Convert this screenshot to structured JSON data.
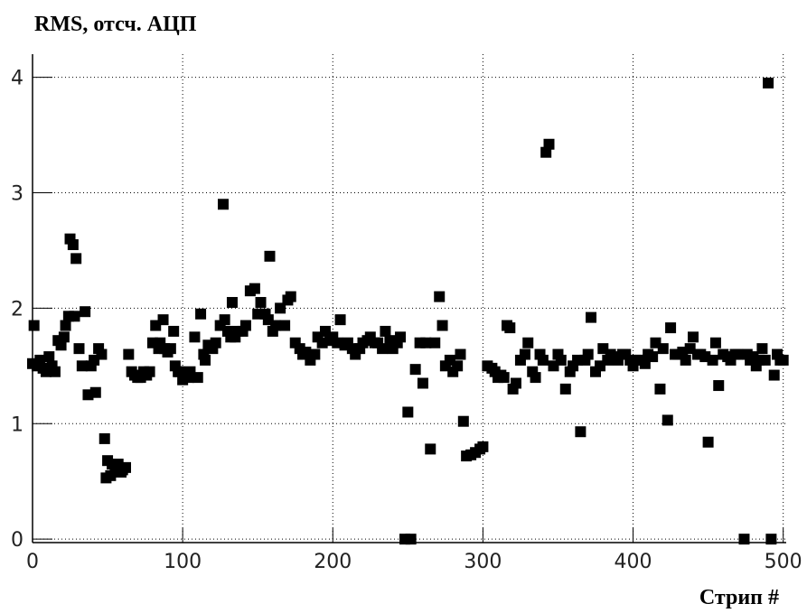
{
  "chart_data": {
    "type": "scatter",
    "title": "RMS, отсч. АЦП",
    "xlabel": "Стрип #",
    "color": "#000000",
    "grid": true,
    "xlim": [
      0,
      502
    ],
    "ylim": [
      -0.03,
      4.2
    ],
    "xticks": [
      0,
      100,
      200,
      300,
      400,
      500
    ],
    "yticks": [
      0,
      1,
      2,
      3,
      4
    ],
    "x": [
      0,
      1,
      3,
      5,
      7,
      9,
      11,
      13,
      15,
      17,
      19,
      21,
      22,
      24,
      25,
      27,
      28,
      29,
      31,
      33,
      35,
      37,
      39,
      41,
      42,
      44,
      46,
      48,
      49,
      50,
      52,
      53,
      55,
      57,
      59,
      60,
      62,
      64,
      66,
      68,
      70,
      72,
      74,
      76,
      78,
      80,
      82,
      84,
      85,
      87,
      88,
      90,
      92,
      94,
      95,
      97,
      98,
      100,
      102,
      104,
      105,
      108,
      110,
      112,
      114,
      115,
      117,
      120,
      122,
      125,
      127,
      128,
      130,
      132,
      133,
      135,
      137,
      140,
      142,
      145,
      148,
      150,
      152,
      155,
      157,
      158,
      160,
      162,
      165,
      168,
      170,
      172,
      175,
      178,
      180,
      182,
      185,
      188,
      190,
      193,
      195,
      198,
      200,
      203,
      205,
      208,
      210,
      213,
      215,
      218,
      220,
      223,
      225,
      228,
      230,
      233,
      235,
      238,
      240,
      243,
      245,
      248,
      250,
      252,
      255,
      258,
      260,
      262,
      265,
      268,
      271,
      273,
      275,
      278,
      280,
      283,
      285,
      287,
      289,
      292,
      295,
      298,
      300,
      303,
      306,
      308,
      310,
      312,
      314,
      316,
      318,
      320,
      322,
      325,
      328,
      330,
      333,
      335,
      338,
      340,
      342,
      344,
      347,
      350,
      352,
      355,
      358,
      360,
      363,
      365,
      368,
      370,
      372,
      375,
      378,
      380,
      383,
      385,
      388,
      390,
      393,
      395,
      398,
      400,
      403,
      405,
      408,
      410,
      413,
      415,
      418,
      420,
      423,
      425,
      428,
      430,
      433,
      435,
      438,
      440,
      443,
      445,
      448,
      450,
      453,
      455,
      457,
      460,
      463,
      465,
      468,
      470,
      474,
      476,
      478,
      480,
      482,
      484,
      486,
      488,
      490,
      492,
      494,
      496,
      498,
      500
    ],
    "values": [
      1.52,
      1.85,
      1.5,
      1.55,
      1.48,
      1.45,
      1.58,
      1.5,
      1.45,
      1.72,
      1.68,
      1.75,
      1.85,
      1.93,
      2.6,
      2.55,
      1.93,
      2.43,
      1.65,
      1.5,
      1.97,
      1.25,
      1.5,
      1.55,
      1.27,
      1.65,
      1.6,
      0.87,
      0.53,
      0.68,
      0.55,
      0.65,
      0.6,
      0.65,
      0.58,
      0.6,
      0.62,
      1.6,
      1.45,
      1.42,
      1.4,
      1.4,
      1.45,
      1.42,
      1.45,
      1.7,
      1.85,
      1.65,
      1.7,
      1.9,
      1.65,
      1.62,
      1.65,
      1.8,
      1.5,
      1.45,
      1.45,
      1.38,
      1.42,
      1.4,
      1.45,
      1.75,
      1.4,
      1.95,
      1.6,
      1.55,
      1.68,
      1.65,
      1.7,
      1.85,
      2.9,
      1.9,
      1.8,
      1.75,
      2.05,
      1.75,
      1.8,
      1.8,
      1.85,
      2.15,
      2.17,
      1.95,
      2.05,
      1.95,
      1.9,
      2.45,
      1.8,
      1.85,
      2.0,
      1.85,
      2.07,
      2.1,
      1.7,
      1.65,
      1.6,
      1.62,
      1.55,
      1.6,
      1.75,
      1.7,
      1.8,
      1.72,
      1.75,
      1.7,
      1.9,
      1.68,
      1.7,
      1.65,
      1.6,
      1.65,
      1.7,
      1.72,
      1.75,
      1.7,
      1.7,
      1.65,
      1.8,
      1.72,
      1.65,
      1.7,
      1.75,
      0.0,
      1.1,
      0.0,
      1.47,
      1.7,
      1.35,
      1.7,
      0.78,
      1.7,
      2.1,
      1.85,
      1.5,
      1.55,
      1.45,
      1.5,
      1.6,
      1.02,
      0.72,
      0.73,
      0.75,
      0.78,
      0.8,
      1.5,
      1.48,
      1.45,
      1.4,
      1.42,
      1.4,
      1.85,
      1.83,
      1.3,
      1.35,
      1.55,
      1.6,
      1.7,
      1.45,
      1.4,
      1.6,
      1.55,
      3.35,
      3.42,
      1.5,
      1.6,
      1.55,
      1.3,
      1.45,
      1.5,
      1.55,
      0.93,
      1.55,
      1.6,
      1.92,
      1.45,
      1.5,
      1.65,
      1.55,
      1.6,
      1.58,
      1.55,
      1.6,
      1.6,
      1.55,
      1.5,
      1.55,
      1.55,
      1.52,
      1.6,
      1.58,
      1.7,
      1.3,
      1.65,
      1.03,
      1.83,
      1.6,
      1.6,
      1.62,
      1.55,
      1.65,
      1.75,
      1.6,
      1.6,
      1.58,
      0.84,
      1.55,
      1.7,
      1.33,
      1.6,
      1.58,
      1.55,
      1.6,
      1.6,
      0.0,
      1.6,
      1.55,
      1.58,
      1.5,
      1.55,
      1.65,
      1.55,
      3.95,
      0.0,
      1.42,
      1.6,
      1.55,
      1.55
    ]
  }
}
